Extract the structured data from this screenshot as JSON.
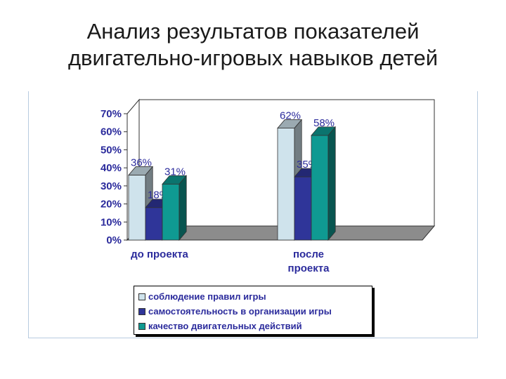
{
  "title_lines": [
    "Анализ результатов показателей",
    "двигательно-игровых навыков детей"
  ],
  "colors": {
    "series1": "#cfe3ec",
    "series2": "#2f3599",
    "series3": "#0f9a92",
    "axis_text": "#2b2b9c"
  },
  "chart_data": {
    "type": "bar",
    "title": "Анализ результатов показателей двигательно-игровых навыков детей",
    "categories": [
      "до проекта",
      "после проекта"
    ],
    "category_lines": [
      [
        "до проекта"
      ],
      [
        "после",
        "проекта"
      ]
    ],
    "series": [
      {
        "name": "соблюдение правил игры",
        "values": [
          36,
          62
        ],
        "labels": [
          "36%",
          "62%"
        ]
      },
      {
        "name": "самостоятельность в организации игры",
        "values": [
          18,
          35
        ],
        "labels": [
          "18%",
          "35%"
        ]
      },
      {
        "name": "качество двигательных действий",
        "values": [
          31,
          58
        ],
        "labels": [
          "31%",
          "58%"
        ]
      }
    ],
    "ylim": [
      0,
      70
    ],
    "yticks": [
      "0%",
      "10%",
      "20%",
      "30%",
      "40%",
      "50%",
      "60%",
      "70%"
    ],
    "ytick_values": [
      0,
      10,
      20,
      30,
      40,
      50,
      60,
      70
    ],
    "grid": false,
    "three_d": true,
    "legend_position": "bottom"
  }
}
